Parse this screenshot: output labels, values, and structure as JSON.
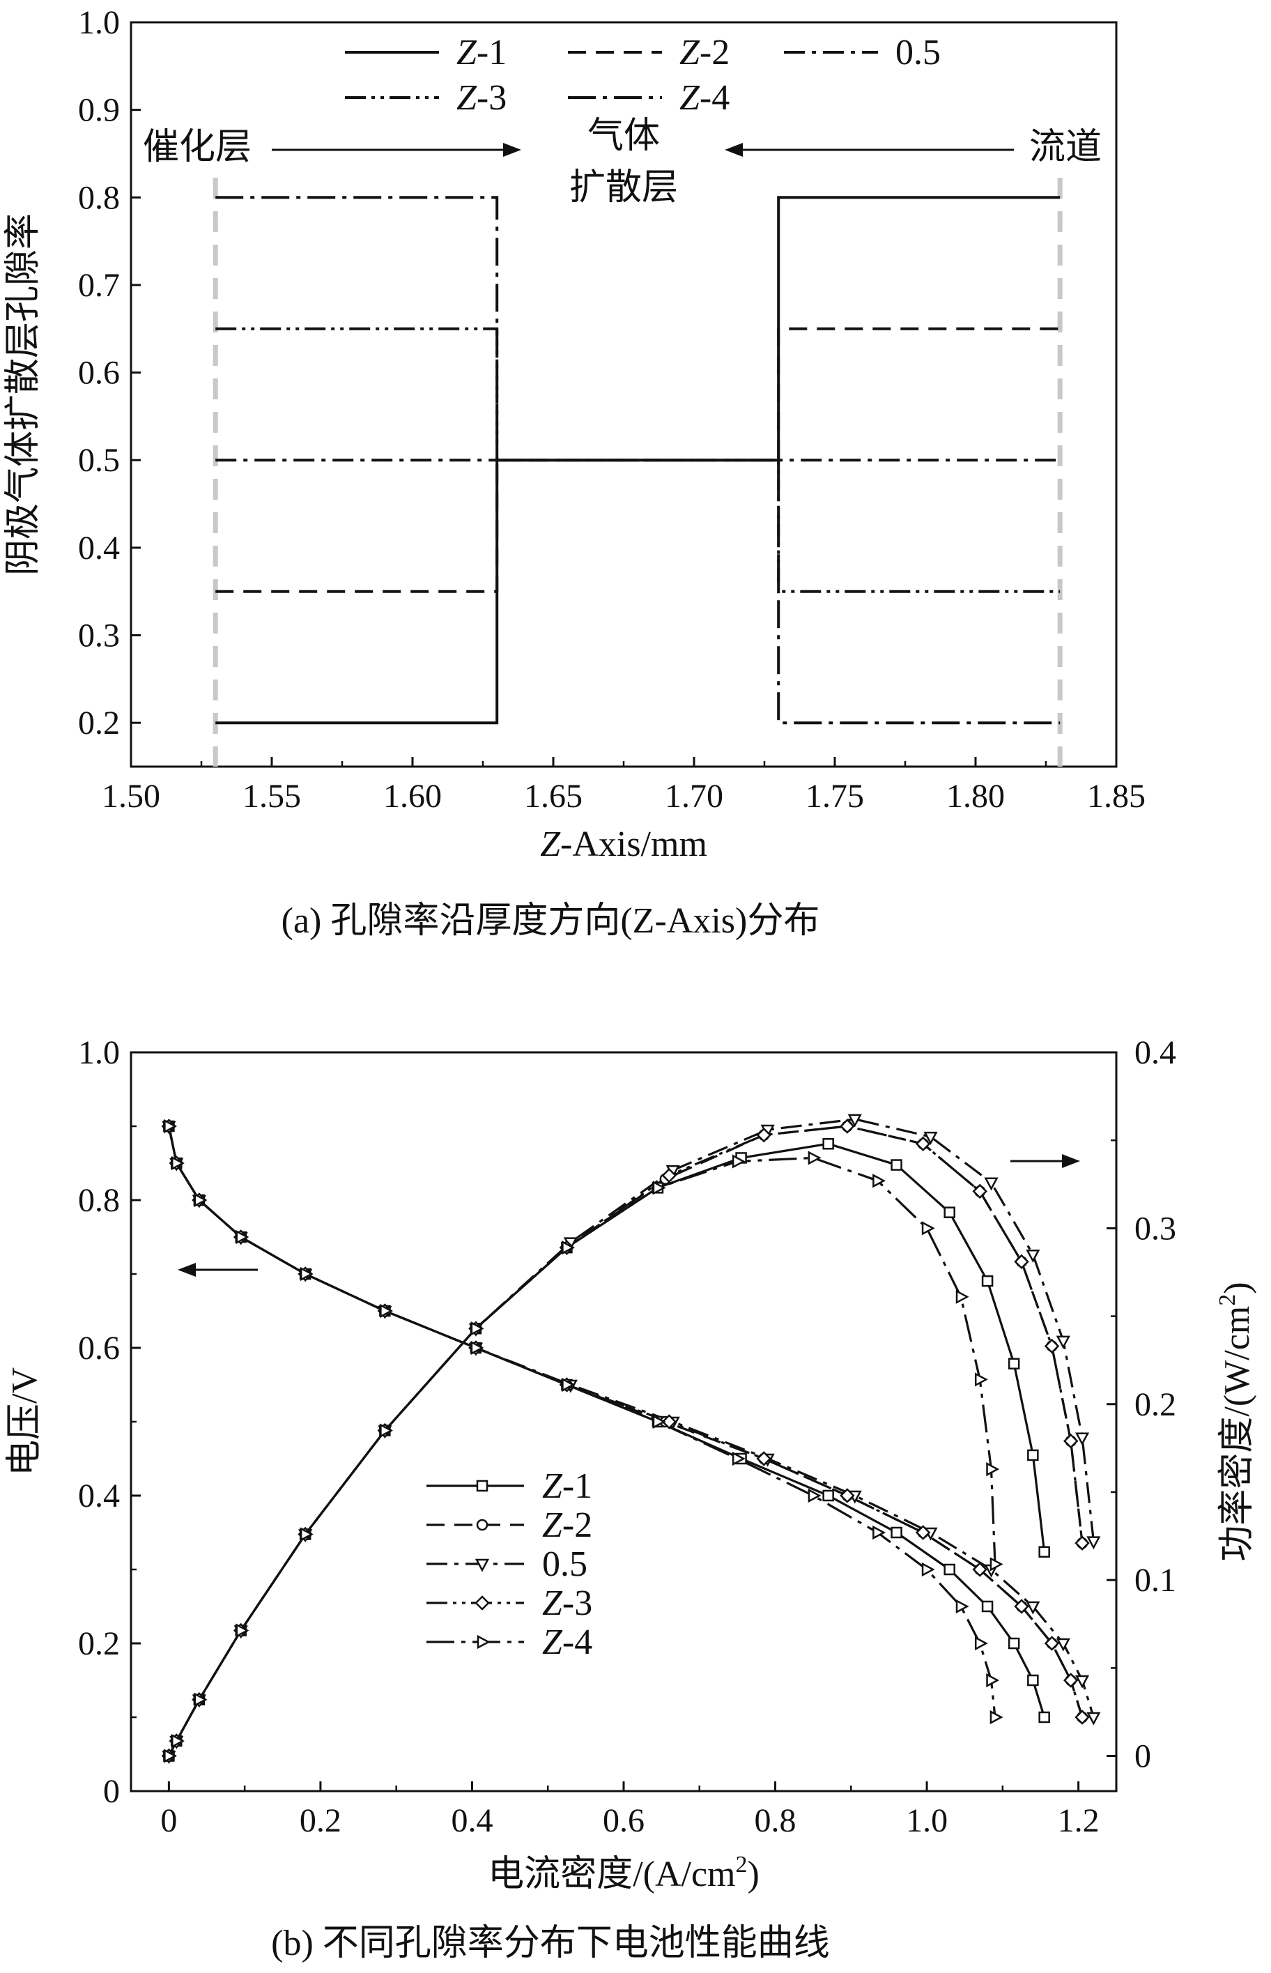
{
  "chart_data": [
    {
      "type": "line",
      "xlabel": "Z-Axis/mm",
      "ylabel": "阴极气体扩散层孔隙率",
      "caption": "(a) 孔隙率沿厚度方向(Z-Axis)分布",
      "xlim": [
        1.5,
        1.85
      ],
      "ylim": [
        0.15,
        1.0
      ],
      "xticks": [
        "1.50",
        "1.55",
        "1.60",
        "1.65",
        "1.70",
        "1.75",
        "1.80",
        "1.85"
      ],
      "yticks": [
        "0.2",
        "0.3",
        "0.4",
        "0.5",
        "0.6",
        "0.7",
        "0.8",
        "0.9",
        "1.0"
      ],
      "grid": false,
      "legend_position": "top",
      "annotations": {
        "left": "催化层",
        "center_line1": "气体",
        "center_line2": "扩散层",
        "right": "流道"
      },
      "boundaries": [
        1.53,
        1.83
      ],
      "series": [
        {
          "name": "Z-1",
          "style": "solid",
          "x": [
            1.53,
            1.63,
            1.63,
            1.73,
            1.73,
            1.83
          ],
          "y": [
            0.2,
            0.2,
            0.5,
            0.5,
            0.8,
            0.8
          ]
        },
        {
          "name": "Z-2",
          "style": "dashed",
          "x": [
            1.53,
            1.63,
            1.63,
            1.73,
            1.73,
            1.83
          ],
          "y": [
            0.35,
            0.35,
            0.5,
            0.5,
            0.65,
            0.65
          ]
        },
        {
          "name": "0.5",
          "style": "dashdot",
          "x": [
            1.53,
            1.83
          ],
          "y": [
            0.5,
            0.5
          ]
        },
        {
          "name": "Z-3",
          "style": "dashdotdot",
          "x": [
            1.53,
            1.63,
            1.63,
            1.73,
            1.73,
            1.83
          ],
          "y": [
            0.65,
            0.65,
            0.5,
            0.5,
            0.35,
            0.35
          ]
        },
        {
          "name": "Z-4",
          "style": "dashdotlong",
          "x": [
            1.53,
            1.63,
            1.63,
            1.73,
            1.73,
            1.83
          ],
          "y": [
            0.8,
            0.8,
            0.5,
            0.5,
            0.2,
            0.2
          ]
        }
      ]
    },
    {
      "type": "line",
      "xlabel": "电流密度/(A/cm²)",
      "ylabel": "电压/V",
      "y2label": "功率密度/(W/cm²)",
      "caption": "(b) 不同孔隙率分布下电池性能曲线",
      "xlim": [
        -0.05,
        1.25
      ],
      "ylim": [
        0,
        1.0
      ],
      "y2lim": [
        -0.02,
        0.4
      ],
      "xticks": [
        "0",
        "0.2",
        "0.4",
        "0.6",
        "0.8",
        "1.0",
        "1.2"
      ],
      "yticks": [
        "0",
        "0.2",
        "0.4",
        "0.6",
        "0.8",
        "1.0"
      ],
      "y2ticks": [
        "0",
        "0.1",
        "0.2",
        "0.3",
        "0.4"
      ],
      "grid": false,
      "legend_position": "lower-center",
      "series": [
        {
          "name": "Z-1",
          "style": "solid",
          "marker": "square",
          "voltage": {
            "x": [
              0,
              0.01,
              0.04,
              0.095,
              0.18,
              0.285,
              0.405,
              0.525,
              0.645,
              0.755,
              0.87,
              0.96,
              1.03,
              1.08,
              1.115,
              1.14,
              1.155
            ],
            "y": [
              0.9,
              0.85,
              0.8,
              0.75,
              0.7,
              0.65,
              0.6,
              0.55,
              0.5,
              0.45,
              0.4,
              0.35,
              0.3,
              0.25,
              0.2,
              0.15,
              0.1
            ]
          },
          "power": {
            "x": [
              0,
              0.01,
              0.04,
              0.095,
              0.18,
              0.285,
              0.405,
              0.525,
              0.645,
              0.755,
              0.87,
              0.96,
              1.03,
              1.08,
              1.115,
              1.14,
              1.155
            ],
            "y": [
              0.0,
              0.0085,
              0.032,
              0.0713,
              0.126,
              0.185,
              0.243,
              0.289,
              0.323,
              0.34,
              0.348,
              0.336,
              0.309,
              0.27,
              0.223,
              0.171,
              0.116
            ]
          }
        },
        {
          "name": "Z-2",
          "style": "dashed",
          "marker": "circle",
          "voltage": {
            "x": [
              0,
              0.01,
              0.04,
              0.095,
              0.18,
              0.285,
              0.405,
              0.525,
              0.655,
              0.785,
              0.895,
              0.995,
              1.07,
              1.125,
              1.165,
              1.19,
              1.205
            ],
            "y": [
              0.9,
              0.85,
              0.8,
              0.75,
              0.7,
              0.65,
              0.6,
              0.55,
              0.5,
              0.45,
              0.4,
              0.35,
              0.3,
              0.25,
              0.2,
              0.15,
              0.1
            ]
          },
          "power": {
            "x": [
              0,
              0.01,
              0.04,
              0.095,
              0.18,
              0.285,
              0.405,
              0.525,
              0.655,
              0.785,
              0.895,
              0.995,
              1.07,
              1.125,
              1.165,
              1.19,
              1.205
            ],
            "y": [
              0.0,
              0.0085,
              0.032,
              0.0713,
              0.126,
              0.185,
              0.243,
              0.289,
              0.328,
              0.353,
              0.358,
              0.348,
              0.321,
              0.281,
              0.233,
              0.179,
              0.121
            ]
          }
        },
        {
          "name": "0.5",
          "style": "dashdot",
          "marker": "triangle-down",
          "voltage": {
            "x": [
              0,
              0.01,
              0.04,
              0.095,
              0.18,
              0.285,
              0.405,
              0.53,
              0.665,
              0.79,
              0.905,
              1.005,
              1.085,
              1.14,
              1.18,
              1.205,
              1.22
            ],
            "y": [
              0.9,
              0.85,
              0.8,
              0.75,
              0.7,
              0.65,
              0.6,
              0.55,
              0.5,
              0.45,
              0.4,
              0.35,
              0.3,
              0.25,
              0.2,
              0.15,
              0.1
            ]
          },
          "power": {
            "x": [
              0,
              0.01,
              0.04,
              0.095,
              0.18,
              0.285,
              0.405,
              0.53,
              0.665,
              0.79,
              0.905,
              1.005,
              1.085,
              1.14,
              1.18,
              1.205,
              1.22
            ],
            "y": [
              0.0,
              0.0085,
              0.032,
              0.0713,
              0.126,
              0.185,
              0.243,
              0.292,
              0.333,
              0.356,
              0.362,
              0.352,
              0.326,
              0.285,
              0.236,
              0.181,
              0.122
            ]
          }
        },
        {
          "name": "Z-3",
          "style": "dashdotdot",
          "marker": "diamond",
          "voltage": {
            "x": [
              0,
              0.01,
              0.04,
              0.095,
              0.18,
              0.285,
              0.405,
              0.525,
              0.66,
              0.785,
              0.895,
              0.995,
              1.07,
              1.125,
              1.165,
              1.19,
              1.205
            ],
            "y": [
              0.9,
              0.85,
              0.8,
              0.75,
              0.7,
              0.65,
              0.6,
              0.55,
              0.5,
              0.45,
              0.4,
              0.35,
              0.3,
              0.25,
              0.2,
              0.15,
              0.1
            ]
          },
          "power": {
            "x": [
              0,
              0.01,
              0.04,
              0.095,
              0.18,
              0.285,
              0.405,
              0.525,
              0.66,
              0.785,
              0.895,
              0.995,
              1.07,
              1.125,
              1.165,
              1.19,
              1.205
            ],
            "y": [
              0.0,
              0.0085,
              0.032,
              0.0713,
              0.126,
              0.185,
              0.243,
              0.289,
              0.33,
              0.353,
              0.358,
              0.348,
              0.321,
              0.281,
              0.233,
              0.179,
              0.121
            ]
          }
        },
        {
          "name": "Z-4",
          "style": "dashdotlong",
          "marker": "triangle-right",
          "voltage": {
            "x": [
              0,
              0.01,
              0.04,
              0.095,
              0.18,
              0.285,
              0.405,
              0.525,
              0.645,
              0.75,
              0.85,
              0.935,
              1.0,
              1.045,
              1.07,
              1.085,
              1.09
            ],
            "y": [
              0.9,
              0.85,
              0.8,
              0.75,
              0.7,
              0.65,
              0.6,
              0.55,
              0.5,
              0.45,
              0.4,
              0.35,
              0.3,
              0.25,
              0.2,
              0.15,
              0.1
            ]
          },
          "power": {
            "x": [
              0,
              0.01,
              0.04,
              0.095,
              0.18,
              0.285,
              0.405,
              0.525,
              0.645,
              0.75,
              0.85,
              0.935,
              1.0,
              1.045,
              1.07,
              1.085,
              1.09
            ],
            "y": [
              0.0,
              0.0085,
              0.032,
              0.0713,
              0.126,
              0.185,
              0.243,
              0.289,
              0.323,
              0.338,
              0.34,
              0.327,
              0.3,
              0.261,
              0.214,
              0.163,
              0.109
            ]
          }
        }
      ]
    }
  ]
}
